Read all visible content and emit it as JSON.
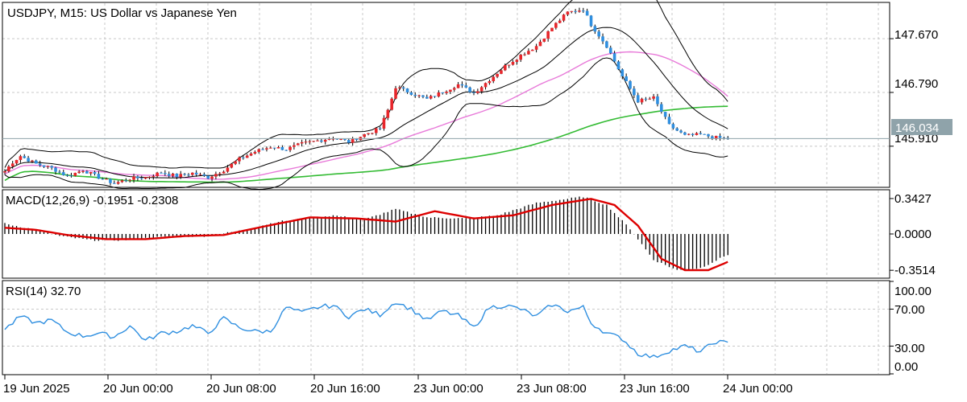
{
  "header": {
    "title": "USDJPY, M15:  US Dollar vs Japanese Yen",
    "macd_label": "MACD(12,26,9) -0.1951 -0.2308",
    "rsi_label": "RSI(14) 32.70",
    "current_price_label": "146.034"
  },
  "colors": {
    "bull_candle": "#e8262b",
    "bear_candle": "#2f8fe0",
    "bollinger": "#000000",
    "ma_fast": "#e87ad9",
    "ma_slow": "#33bb33",
    "macd_signal": "#dd0000",
    "rsi_line": "#2f8fe0",
    "price_box": "#8fa3aa",
    "grid": "#c8c8c8"
  },
  "chart_data": [
    {
      "type": "candlestick",
      "title": "USDJPY, M15:  US Dollar vs Japanese Yen",
      "grid": true,
      "yticks": [
        "147.670",
        "146.790",
        "145.910"
      ],
      "ylim": [
        145.25,
        148.25
      ],
      "current_price": "146.034",
      "x_ticks": [
        "19 Jun 2025",
        "20 Jun 00:00",
        "20 Jun 08:00",
        "20 Jun 16:00",
        "23 Jun 00:00",
        "23 Jun 08:00",
        "23 Jun 16:00",
        "24 Jun 00:00"
      ],
      "close_anchors": [
        {
          "t": 0,
          "v": 145.5
        },
        {
          "t": 2,
          "v": 145.65
        },
        {
          "t": 4,
          "v": 145.75
        },
        {
          "t": 8,
          "v": 145.62
        },
        {
          "t": 12,
          "v": 145.55
        },
        {
          "t": 16,
          "v": 145.42
        },
        {
          "t": 20,
          "v": 145.52
        },
        {
          "t": 24,
          "v": 145.4
        },
        {
          "t": 28,
          "v": 145.3
        },
        {
          "t": 32,
          "v": 145.38
        },
        {
          "t": 36,
          "v": 145.4
        },
        {
          "t": 40,
          "v": 145.48
        },
        {
          "t": 44,
          "v": 145.42
        },
        {
          "t": 48,
          "v": 145.47
        },
        {
          "t": 52,
          "v": 145.4
        },
        {
          "t": 56,
          "v": 145.52
        },
        {
          "t": 60,
          "v": 145.7
        },
        {
          "t": 64,
          "v": 145.82
        },
        {
          "t": 68,
          "v": 145.9
        },
        {
          "t": 72,
          "v": 145.86
        },
        {
          "t": 76,
          "v": 145.95
        },
        {
          "t": 80,
          "v": 146.0
        },
        {
          "t": 84,
          "v": 146.05
        },
        {
          "t": 88,
          "v": 145.98
        },
        {
          "t": 92,
          "v": 146.1
        },
        {
          "t": 96,
          "v": 146.2
        },
        {
          "t": 98,
          "v": 146.5
        },
        {
          "t": 100,
          "v": 146.88
        },
        {
          "t": 104,
          "v": 146.78
        },
        {
          "t": 108,
          "v": 146.68
        },
        {
          "t": 112,
          "v": 146.8
        },
        {
          "t": 116,
          "v": 146.92
        },
        {
          "t": 120,
          "v": 146.78
        },
        {
          "t": 124,
          "v": 147.0
        },
        {
          "t": 128,
          "v": 147.22
        },
        {
          "t": 132,
          "v": 147.4
        },
        {
          "t": 136,
          "v": 147.55
        },
        {
          "t": 140,
          "v": 147.85
        },
        {
          "t": 144,
          "v": 148.1
        },
        {
          "t": 148,
          "v": 148.15
        },
        {
          "t": 150,
          "v": 147.9
        },
        {
          "t": 154,
          "v": 147.55
        },
        {
          "t": 158,
          "v": 147.05
        },
        {
          "t": 162,
          "v": 146.65
        },
        {
          "t": 166,
          "v": 146.7
        },
        {
          "t": 170,
          "v": 146.25
        },
        {
          "t": 174,
          "v": 146.08
        },
        {
          "t": 178,
          "v": 146.1
        },
        {
          "t": 182,
          "v": 146.05
        },
        {
          "t": 185,
          "v": 146.03
        }
      ]
    },
    {
      "type": "histogram+line",
      "title": "MACD(12,26,9) -0.1951 -0.2308",
      "yticks": [
        "0.3427",
        "0.0000",
        "-0.3514"
      ],
      "ylim": [
        -0.42,
        0.42
      ],
      "hist_anchors": [
        {
          "t": 0,
          "v": 0.1
        },
        {
          "t": 8,
          "v": 0.04
        },
        {
          "t": 14,
          "v": -0.02
        },
        {
          "t": 22,
          "v": -0.06
        },
        {
          "t": 30,
          "v": -0.06
        },
        {
          "t": 40,
          "v": -0.03
        },
        {
          "t": 52,
          "v": -0.02
        },
        {
          "t": 60,
          "v": 0.03
        },
        {
          "t": 70,
          "v": 0.12
        },
        {
          "t": 84,
          "v": 0.18
        },
        {
          "t": 92,
          "v": 0.14
        },
        {
          "t": 100,
          "v": 0.24
        },
        {
          "t": 108,
          "v": 0.16
        },
        {
          "t": 118,
          "v": 0.15
        },
        {
          "t": 126,
          "v": 0.18
        },
        {
          "t": 136,
          "v": 0.3
        },
        {
          "t": 148,
          "v": 0.36
        },
        {
          "t": 154,
          "v": 0.28
        },
        {
          "t": 160,
          "v": 0.05
        },
        {
          "t": 166,
          "v": -0.25
        },
        {
          "t": 172,
          "v": -0.35
        },
        {
          "t": 178,
          "v": -0.33
        },
        {
          "t": 185,
          "v": -0.2
        }
      ],
      "signal_anchors": [
        {
          "t": 0,
          "v": 0.06
        },
        {
          "t": 8,
          "v": 0.04
        },
        {
          "t": 16,
          "v": -0.01
        },
        {
          "t": 26,
          "v": -0.05
        },
        {
          "t": 36,
          "v": -0.05
        },
        {
          "t": 46,
          "v": -0.02
        },
        {
          "t": 56,
          "v": -0.01
        },
        {
          "t": 66,
          "v": 0.07
        },
        {
          "t": 78,
          "v": 0.16
        },
        {
          "t": 90,
          "v": 0.15
        },
        {
          "t": 100,
          "v": 0.12
        },
        {
          "t": 110,
          "v": 0.22
        },
        {
          "t": 120,
          "v": 0.15
        },
        {
          "t": 130,
          "v": 0.18
        },
        {
          "t": 140,
          "v": 0.28
        },
        {
          "t": 150,
          "v": 0.34
        },
        {
          "t": 156,
          "v": 0.28
        },
        {
          "t": 162,
          "v": 0.08
        },
        {
          "t": 168,
          "v": -0.24
        },
        {
          "t": 174,
          "v": -0.35
        },
        {
          "t": 180,
          "v": -0.35
        },
        {
          "t": 185,
          "v": -0.27
        }
      ]
    },
    {
      "type": "line",
      "title": "RSI(14) 32.70",
      "yticks": [
        "100.00",
        "70.00",
        "30.00",
        "0.00"
      ],
      "ylim": [
        0,
        100
      ],
      "rsi_anchors": [
        {
          "t": 0,
          "v": 48
        },
        {
          "t": 4,
          "v": 62
        },
        {
          "t": 8,
          "v": 55
        },
        {
          "t": 12,
          "v": 58
        },
        {
          "t": 16,
          "v": 45
        },
        {
          "t": 20,
          "v": 41
        },
        {
          "t": 24,
          "v": 44
        },
        {
          "t": 28,
          "v": 40
        },
        {
          "t": 32,
          "v": 52
        },
        {
          "t": 36,
          "v": 36
        },
        {
          "t": 40,
          "v": 44
        },
        {
          "t": 44,
          "v": 46
        },
        {
          "t": 48,
          "v": 52
        },
        {
          "t": 52,
          "v": 44
        },
        {
          "t": 56,
          "v": 60
        },
        {
          "t": 60,
          "v": 50
        },
        {
          "t": 64,
          "v": 46
        },
        {
          "t": 68,
          "v": 46
        },
        {
          "t": 72,
          "v": 72
        },
        {
          "t": 76,
          "v": 66
        },
        {
          "t": 80,
          "v": 72
        },
        {
          "t": 84,
          "v": 74
        },
        {
          "t": 88,
          "v": 62
        },
        {
          "t": 92,
          "v": 70
        },
        {
          "t": 96,
          "v": 64
        },
        {
          "t": 100,
          "v": 78
        },
        {
          "t": 104,
          "v": 70
        },
        {
          "t": 108,
          "v": 58
        },
        {
          "t": 112,
          "v": 68
        },
        {
          "t": 116,
          "v": 63
        },
        {
          "t": 120,
          "v": 50
        },
        {
          "t": 124,
          "v": 72
        },
        {
          "t": 128,
          "v": 74
        },
        {
          "t": 132,
          "v": 70
        },
        {
          "t": 136,
          "v": 62
        },
        {
          "t": 140,
          "v": 75
        },
        {
          "t": 144,
          "v": 68
        },
        {
          "t": 148,
          "v": 72
        },
        {
          "t": 150,
          "v": 55
        },
        {
          "t": 154,
          "v": 44
        },
        {
          "t": 158,
          "v": 38
        },
        {
          "t": 162,
          "v": 22
        },
        {
          "t": 166,
          "v": 18
        },
        {
          "t": 170,
          "v": 25
        },
        {
          "t": 174,
          "v": 30
        },
        {
          "t": 178,
          "v": 24
        },
        {
          "t": 182,
          "v": 35
        },
        {
          "t": 185,
          "v": 33
        }
      ]
    }
  ]
}
